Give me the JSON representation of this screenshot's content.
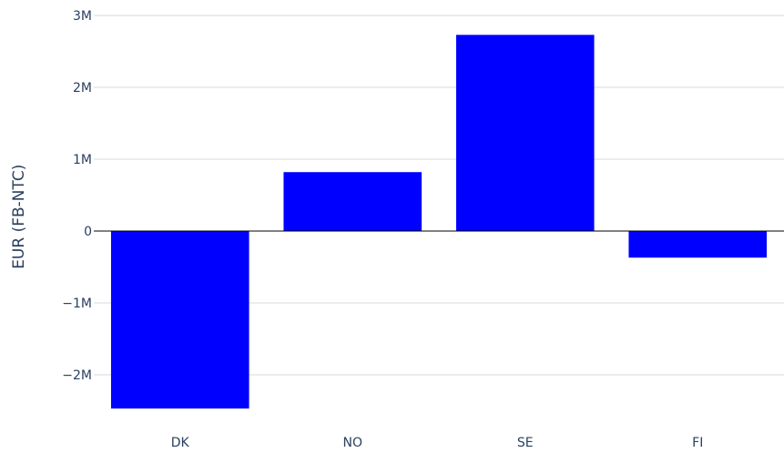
{
  "chart_data": {
    "type": "bar",
    "categories": [
      "DK",
      "NO",
      "SE",
      "FI"
    ],
    "values": [
      -2470000,
      820000,
      2730000,
      -370000
    ],
    "title": "",
    "xlabel": "",
    "ylabel": "EUR (FB-NTC)",
    "ylim": [
      -2600000,
      3000000
    ],
    "yticks": [
      -2000000,
      -1000000,
      0,
      1000000,
      2000000,
      3000000
    ],
    "ytick_labels": [
      "−2M",
      "−1M",
      "0",
      "1M",
      "2M",
      "3M"
    ],
    "grid": true,
    "bar_color": "#0000ff"
  }
}
